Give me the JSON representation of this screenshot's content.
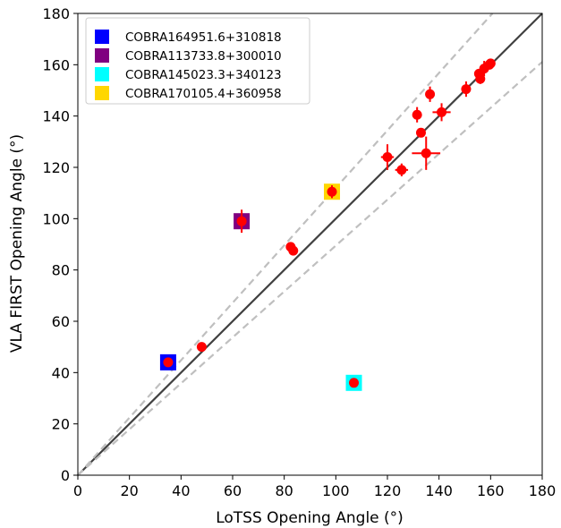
{
  "chart_data": {
    "type": "scatter",
    "xlabel": "LoTSS Opening Angle (°)",
    "ylabel": "VLA FIRST Opening Angle (°)",
    "xlim": [
      0,
      180
    ],
    "ylim": [
      0,
      180
    ],
    "xticks": [
      "0",
      "20",
      "40",
      "60",
      "80",
      "100",
      "120",
      "140",
      "160",
      "180"
    ],
    "yticks": [
      "0",
      "20",
      "40",
      "60",
      "80",
      "100",
      "120",
      "140",
      "160",
      "180"
    ],
    "grid": false,
    "legend_position": "top-left",
    "reference_lines": [
      {
        "style": "solid",
        "color": "#404040",
        "slope": 1.0
      },
      {
        "style": "dashed",
        "color": "#bfbfbf",
        "slope": 1.12
      },
      {
        "style": "dashed",
        "color": "#bfbfbf",
        "slope": 0.895
      }
    ],
    "points": [
      {
        "x": 35,
        "y": 44,
        "xerr": 0,
        "yerr": 0
      },
      {
        "x": 48,
        "y": 50,
        "xerr": 0,
        "yerr": 0
      },
      {
        "x": 63.5,
        "y": 99,
        "xerr": 0,
        "yerr": 4.5
      },
      {
        "x": 82.5,
        "y": 89,
        "xerr": 0,
        "yerr": 0
      },
      {
        "x": 83.5,
        "y": 87.5,
        "xerr": 0,
        "yerr": 0
      },
      {
        "x": 98.5,
        "y": 110.5,
        "xerr": 0,
        "yerr": 2.5
      },
      {
        "x": 107,
        "y": 36,
        "xerr": 0,
        "yerr": 0
      },
      {
        "x": 120,
        "y": 124,
        "xerr": 2.5,
        "yerr": 5
      },
      {
        "x": 125.5,
        "y": 119,
        "xerr": 2.5,
        "yerr": 2.5
      },
      {
        "x": 131.5,
        "y": 140.5,
        "xerr": 0,
        "yerr": 3
      },
      {
        "x": 133,
        "y": 133.5,
        "xerr": 0,
        "yerr": 0
      },
      {
        "x": 135,
        "y": 125.5,
        "xerr": 5.5,
        "yerr": 6.5
      },
      {
        "x": 136.5,
        "y": 148.5,
        "xerr": 0,
        "yerr": 3
      },
      {
        "x": 141,
        "y": 141.5,
        "xerr": 3.5,
        "yerr": 3.5
      },
      {
        "x": 150.5,
        "y": 150.5,
        "xerr": 0,
        "yerr": 3
      },
      {
        "x": 155.5,
        "y": 156.5,
        "xerr": 0,
        "yerr": 0
      },
      {
        "x": 156,
        "y": 154.5,
        "xerr": 0,
        "yerr": 2
      },
      {
        "x": 157.5,
        "y": 158.5,
        "xerr": 0,
        "yerr": 3
      },
      {
        "x": 159.5,
        "y": 160,
        "xerr": 0,
        "yerr": 0
      },
      {
        "x": 160,
        "y": 160.5,
        "xerr": 0,
        "yerr": 0
      }
    ],
    "point_color": "#ff0000",
    "highlighted": [
      {
        "name": "COBRA164951.6+310818",
        "color": "#0000ff",
        "x": 35,
        "y": 44
      },
      {
        "name": "COBRA113733.8+300010",
        "color": "#800080",
        "x": 63.5,
        "y": 99
      },
      {
        "name": "COBRA145023.3+340123",
        "color": "#00ffff",
        "x": 107,
        "y": 36
      },
      {
        "name": "COBRA170105.4+360958",
        "color": "#ffd700",
        "x": 98.5,
        "y": 110.5
      }
    ]
  }
}
